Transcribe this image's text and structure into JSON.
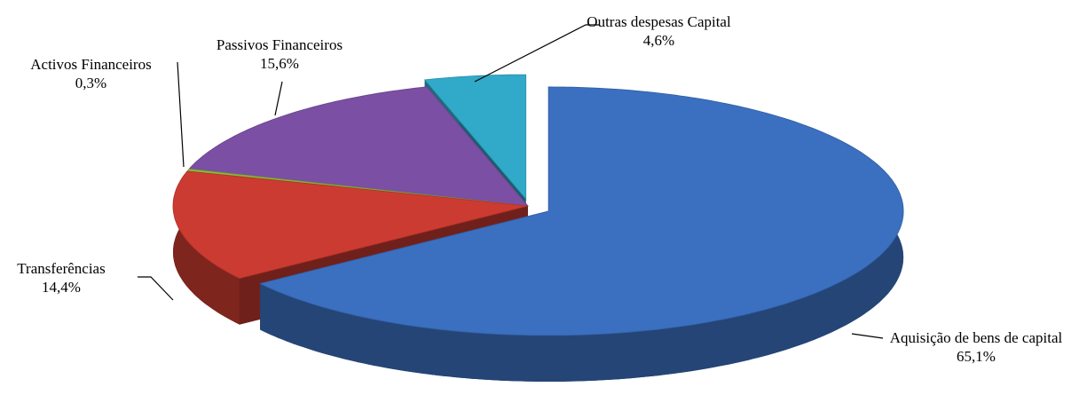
{
  "chart_data": {
    "type": "pie",
    "categories": [
      "Aquisição de bens de capital",
      "Transferências",
      "Activos Financeiros",
      "Passivos Financeiros",
      "Outras despesas Capital"
    ],
    "values": [
      65.1,
      14.4,
      0.3,
      15.6,
      4.6
    ],
    "value_labels": [
      "65,1%",
      "14,4%",
      "0,3%",
      "15,6%",
      "4,6%"
    ],
    "colors": [
      "#3b6fc0",
      "#cc3b31",
      "#8bb83a",
      "#7b4fa3",
      "#31a9c9"
    ]
  }
}
